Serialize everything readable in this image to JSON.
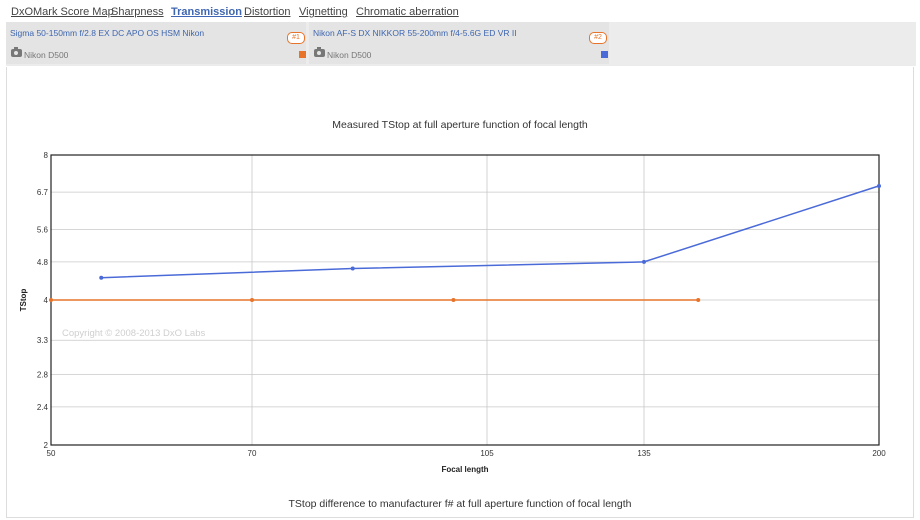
{
  "tabs": [
    {
      "label": "DxOMark Score Map",
      "active": false
    },
    {
      "label": "Sharpness",
      "active": false
    },
    {
      "label": "Transmission",
      "active": true
    },
    {
      "label": "Distortion",
      "active": false
    },
    {
      "label": "Vignetting",
      "active": false
    },
    {
      "label": "Chromatic aberration",
      "active": false
    }
  ],
  "lenses": [
    {
      "name": "Sigma 50-150mm f/2.8 EX DC APO OS HSM Nikon",
      "badge": "#1",
      "camera": "Nikon D500",
      "color": "#e8742a"
    },
    {
      "name": "Nikon AF-S DX NIKKOR 55-200mm f/4-5.6G ED VR II",
      "badge": "#2",
      "camera": "Nikon D500",
      "color": "#4a6ad8"
    }
  ],
  "copyright": "Copyright © 2008-2013 DxO Labs",
  "second_chart_title": "TStop difference to manufacturer f# at full aperture function of focal length",
  "chart_data": {
    "type": "line",
    "title": "Measured TStop at full aperture function of focal length",
    "xlabel": "Focal length",
    "ylabel": "TStop",
    "x_ticks": [
      50,
      70,
      105,
      135,
      200
    ],
    "y_ticks": [
      2,
      2.4,
      2.8,
      3.3,
      4,
      4.8,
      5.6,
      6.7,
      8
    ],
    "xlim": [
      50,
      200
    ],
    "ylim": [
      2,
      8
    ],
    "y_scale": "log",
    "grid": true,
    "series": [
      {
        "name": "Sigma 50-150mm f/2.8 EX DC APO OS HSM Nikon",
        "color": "#e8742a",
        "points": [
          [
            50,
            4.0
          ],
          [
            70,
            4.0
          ],
          [
            100,
            4.0
          ],
          [
            150,
            4.0
          ]
        ]
      },
      {
        "name": "Nikon AF-S DX NIKKOR 55-200mm f/4-5.6G ED VR II",
        "color": "#4a6ad8",
        "points": [
          [
            55,
            4.45
          ],
          [
            85,
            4.65
          ],
          [
            135,
            4.8
          ],
          [
            200,
            6.9
          ]
        ]
      }
    ]
  }
}
